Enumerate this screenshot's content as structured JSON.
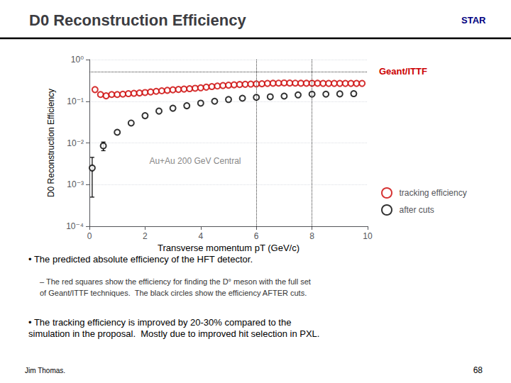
{
  "chart_data": {
    "type": "scatter",
    "title": "D0 Reconstruction Efficiency",
    "x_label": "Transverse momentum pT (GeV/c)",
    "y_label": "D0 Reconstruction Efficiency",
    "annotations": [
      "Au+Au 200 GeV Central",
      "Geant/ITTF",
      "STAR",
      "• The predicted absolute efficiency of the HFT detector.",
      "– The red squares show the efficiency for finding the D° meson with the full set\nof Geant/ITTF techniques.  The black circles show the efficiency AFTER cuts.",
      "• The tracking efficiency is improved by 20-30% compared to the\nsimulation in the proposal.  Mostly due to improved hit selection in PXL.",
      "Jim Thomas.",
      "68"
    ],
    "log": "y",
    "grid": true,
    "legend": "lower right",
    "xlim": [
      0,
      10
    ],
    "xticks": [
      0,
      2,
      4,
      6,
      8,
      10
    ],
    "ylim": [
      0.0001,
      1
    ],
    "yticks": [
      {
        "value": 0.0001,
        "label": "10⁻⁴"
      },
      {
        "value": 0.001,
        "label": "10⁻³"
      },
      {
        "value": 0.01,
        "label": "10⁻²"
      },
      {
        "value": 0.1,
        "label": "10⁻¹"
      },
      {
        "value": 1,
        "label": "10⁰"
      }
    ],
    "vlines": [
      6.0,
      8.0
    ],
    "hlines": [
      0.5
    ],
    "series": [
      {
        "name": "tracking efficiency",
        "color": "#cc0000",
        "marker": "open_circle",
        "x": [
          0.2,
          0.4,
          0.6,
          0.8,
          1.0,
          1.2,
          1.4,
          1.6,
          1.8,
          2.0,
          2.2,
          2.4,
          2.6,
          2.8,
          3.0,
          3.2,
          3.4,
          3.6,
          3.8,
          4.0,
          4.2,
          4.4,
          4.6,
          4.8,
          5.0,
          5.2,
          5.4,
          5.6,
          5.8,
          6.0,
          6.2,
          6.4,
          6.6,
          6.8,
          7.0,
          7.2,
          7.4,
          7.6,
          7.8,
          8.0,
          8.2,
          8.4,
          8.6,
          8.8,
          9.0,
          9.2,
          9.4,
          9.6,
          9.8
        ],
        "values": [
          0.19,
          0.145,
          0.135,
          0.145,
          0.145,
          0.148,
          0.152,
          0.155,
          0.158,
          0.162,
          0.167,
          0.173,
          0.178,
          0.183,
          0.188,
          0.192,
          0.196,
          0.2,
          0.205,
          0.21,
          0.218,
          0.225,
          0.232,
          0.238,
          0.243,
          0.248,
          0.252,
          0.255,
          0.258,
          0.26,
          0.263,
          0.268,
          0.27,
          0.272,
          0.275,
          0.273,
          0.272,
          0.27,
          0.27,
          0.27,
          0.27,
          0.268,
          0.268,
          0.268,
          0.268,
          0.268,
          0.268,
          0.268,
          0.268
        ]
      },
      {
        "name": "after cuts",
        "color": "#000000",
        "marker": "open_circle",
        "x": [
          0.1,
          0.5,
          1.0,
          1.5,
          2.0,
          2.5,
          3.0,
          3.5,
          4.0,
          4.5,
          5.0,
          5.5,
          6.0,
          6.5,
          7.0,
          7.5,
          8.0,
          8.5,
          9.0,
          9.5
        ],
        "values": [
          0.0025,
          0.0085,
          0.018,
          0.03,
          0.045,
          0.058,
          0.068,
          0.078,
          0.09,
          0.1,
          0.11,
          0.118,
          0.124,
          0.128,
          0.133,
          0.142,
          0.148,
          0.148,
          0.15,
          0.152
        ],
        "errors": [
          0.002,
          0.002,
          0.0,
          0.0,
          0.0,
          0.0,
          0.0,
          0.0,
          0.0,
          0.0,
          0.0,
          0.0,
          0.0,
          0.0,
          0.0,
          0.0,
          0.0,
          0.0,
          0.0,
          0.0
        ]
      }
    ]
  }
}
